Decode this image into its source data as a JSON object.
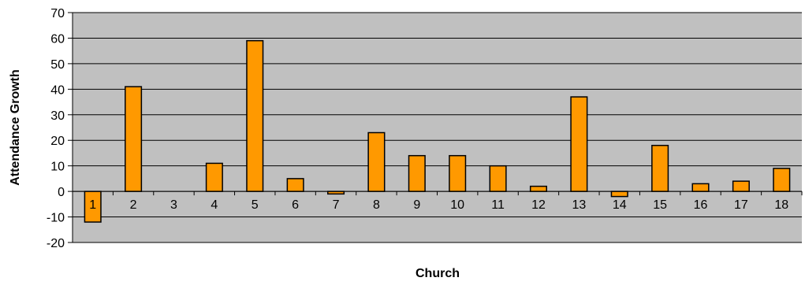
{
  "chart_data": {
    "type": "bar",
    "title": "",
    "xlabel": "Church",
    "ylabel": "Attendance Growth",
    "categories": [
      "1",
      "2",
      "3",
      "4",
      "5",
      "6",
      "7",
      "8",
      "9",
      "10",
      "11",
      "12",
      "13",
      "14",
      "15",
      "16",
      "17",
      "18"
    ],
    "values": [
      -12,
      41,
      0,
      11,
      59,
      5,
      -1,
      23,
      14,
      14,
      10,
      2,
      37,
      -2,
      18,
      3,
      4,
      9
    ],
    "ylim": [
      -20,
      70
    ],
    "yticks": [
      -20,
      -10,
      0,
      10,
      20,
      30,
      40,
      50,
      60,
      70
    ],
    "grid": true,
    "legend": "none",
    "colors": {
      "bar_fill": "#ff9900",
      "bar_stroke": "#000000",
      "plot_background": "#c0c0c0",
      "gridline": "#000000"
    }
  }
}
